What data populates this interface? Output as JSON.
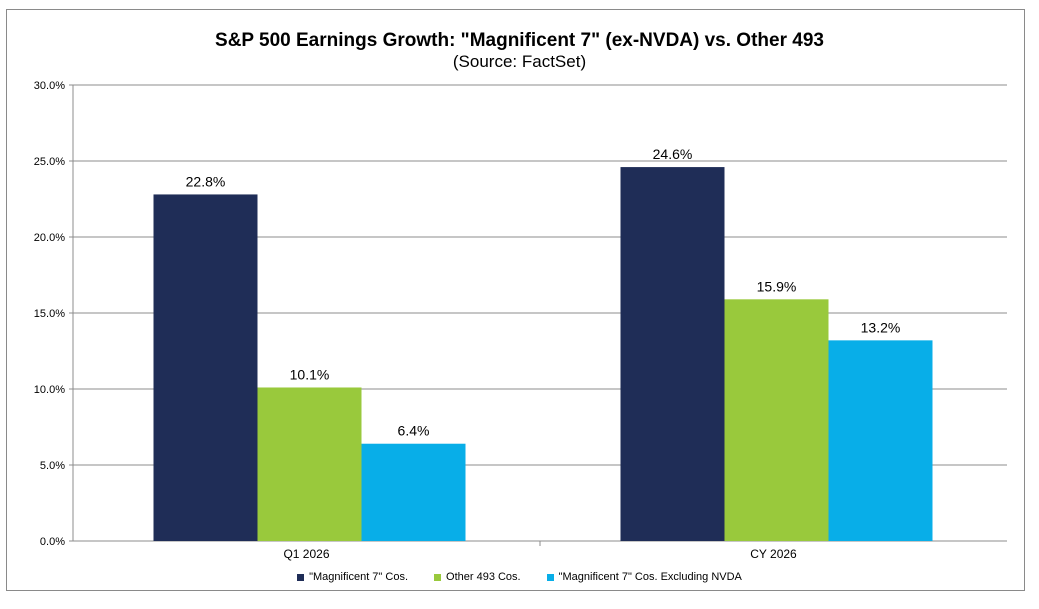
{
  "chart_data": {
    "type": "bar",
    "title": "S&P 500 Earnings Growth: \"Magnificent 7\" (ex-NVDA)  vs. Other 493",
    "subtitle": "(Source: FactSet)",
    "categories": [
      "Q1 2026",
      "CY 2026"
    ],
    "series": [
      {
        "name": "\"Magnificent 7\" Cos.",
        "color": "#1f2d57",
        "values": [
          22.8,
          24.6
        ],
        "labels": [
          "22.8%",
          "24.6%"
        ]
      },
      {
        "name": "Other 493 Cos.",
        "color": "#99c93c",
        "values": [
          10.1,
          15.9
        ],
        "labels": [
          "10.1%",
          "15.9%"
        ]
      },
      {
        "name": "\"Magnificent 7\" Cos. Excluding NVDA",
        "color": "#08aee8",
        "values": [
          6.4,
          13.2
        ],
        "labels": [
          "6.4%",
          "13.2%"
        ]
      }
    ],
    "ylim": [
      0,
      30
    ],
    "yticks": [
      0,
      5,
      10,
      15,
      20,
      25,
      30
    ],
    "ytick_labels": [
      "0.0%",
      "5.0%",
      "10.0%",
      "15.0%",
      "20.0%",
      "25.0%",
      "30.0%"
    ],
    "xlabel": "",
    "ylabel": "",
    "grid": true,
    "legend_position": "bottom"
  }
}
